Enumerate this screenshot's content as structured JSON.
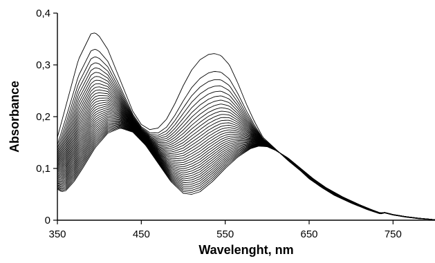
{
  "chart_data": {
    "type": "line",
    "title": "",
    "xlabel": "Wavelenght, nm",
    "ylabel": "Absorbance",
    "xlim": [
      350,
      800
    ],
    "ylim": [
      0,
      0.4
    ],
    "x_ticks": [
      350,
      450,
      550,
      650,
      750
    ],
    "x_tick_labels": [
      "350",
      "450",
      "550",
      "650",
      "750"
    ],
    "y_ticks": [
      0,
      0.1,
      0.2,
      0.3,
      0.4
    ],
    "y_tick_labels": [
      "0",
      "0,1",
      "0,2",
      "0,3",
      "0,4"
    ],
    "grid": false,
    "legend": "none",
    "line_color": "#000000",
    "series_count": 36,
    "first_series": {
      "x": [
        350,
        360,
        375,
        390,
        395,
        400,
        410,
        420,
        430,
        440,
        450,
        460,
        470,
        480,
        490,
        500,
        510,
        520,
        530,
        537,
        545,
        555,
        565,
        575,
        585,
        595,
        605,
        615,
        625,
        640,
        650,
        665,
        680,
        700,
        720,
        735,
        740,
        750,
        765,
        780,
        800
      ],
      "y": [
        0.16,
        0.22,
        0.31,
        0.36,
        0.362,
        0.355,
        0.33,
        0.29,
        0.25,
        0.21,
        0.185,
        0.175,
        0.178,
        0.195,
        0.225,
        0.26,
        0.29,
        0.31,
        0.32,
        0.322,
        0.318,
        0.3,
        0.265,
        0.225,
        0.19,
        0.16,
        0.145,
        0.13,
        0.115,
        0.095,
        0.08,
        0.063,
        0.048,
        0.033,
        0.02,
        0.012,
        0.014,
        0.01,
        0.006,
        0.003,
        0.001
      ]
    },
    "last_series": {
      "x": [
        350,
        355,
        360,
        370,
        380,
        395,
        410,
        425,
        440,
        455,
        470,
        485,
        500,
        510,
        520,
        535,
        550,
        565,
        580,
        590,
        600,
        610,
        625,
        640,
        655,
        670,
        690,
        710,
        725,
        735,
        740,
        750,
        765,
        780,
        800
      ],
      "y": [
        0.06,
        0.055,
        0.057,
        0.075,
        0.1,
        0.14,
        0.168,
        0.178,
        0.17,
        0.145,
        0.11,
        0.075,
        0.052,
        0.05,
        0.055,
        0.075,
        0.1,
        0.122,
        0.138,
        0.143,
        0.142,
        0.135,
        0.12,
        0.1,
        0.08,
        0.063,
        0.045,
        0.03,
        0.02,
        0.014,
        0.015,
        0.011,
        0.007,
        0.004,
        0.001
      ]
    }
  }
}
